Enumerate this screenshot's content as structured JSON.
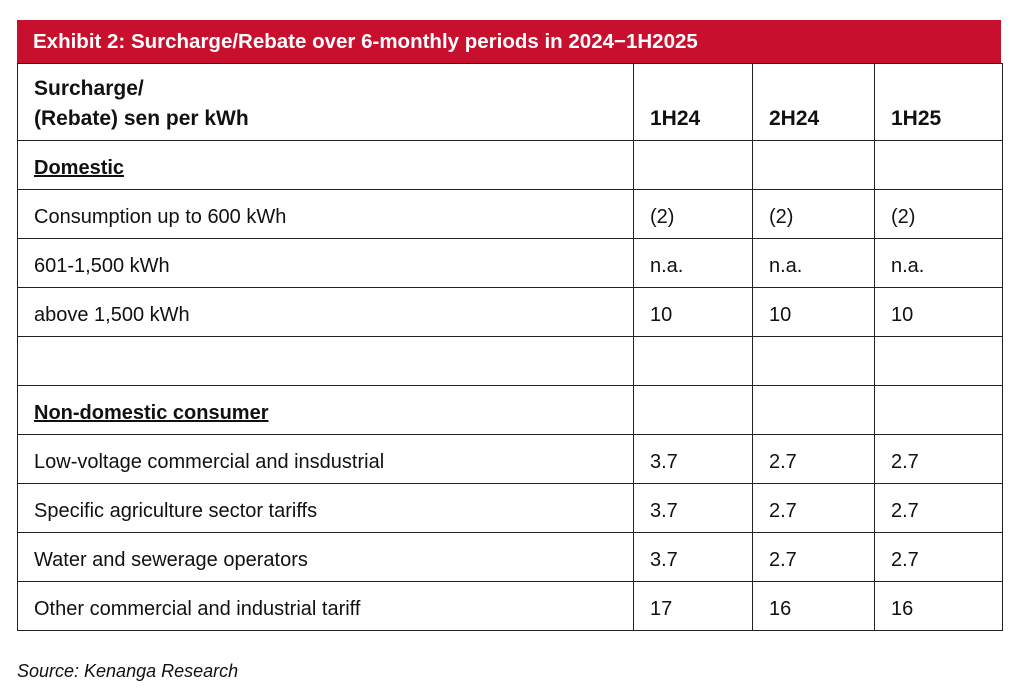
{
  "title": "Exhibit 2: Surcharge/Rebate over 6-monthly periods in 2024−1H2025",
  "table": {
    "header": [
      "Surcharge/\n(Rebate) sen per kWh",
      "1H24",
      "2H24",
      "1H25"
    ],
    "sections": [
      {
        "name": "Domestic",
        "rows": [
          [
            "Consumption up to 600 kWh",
            "(2)",
            "(2)",
            "(2)"
          ],
          [
            "601-1,500 kWh",
            "n.a.",
            "n.a.",
            "n.a."
          ],
          [
            "above 1,500 kWh",
            10,
            10,
            10
          ]
        ]
      },
      {
        "name": "Non-domestic consumer",
        "rows": [
          [
            "Low-voltage commercial and insdustrial",
            3.7,
            2.7,
            2.7
          ],
          [
            "Specific agriculture sector tariffs",
            3.7,
            2.7,
            2.7
          ],
          [
            "Water and sewerage operators",
            3.7,
            2.7,
            2.7
          ],
          [
            "Other commercial and industrial tariff",
            17,
            16,
            16
          ]
        ]
      }
    ]
  },
  "source": "Source: Kenanga Research"
}
